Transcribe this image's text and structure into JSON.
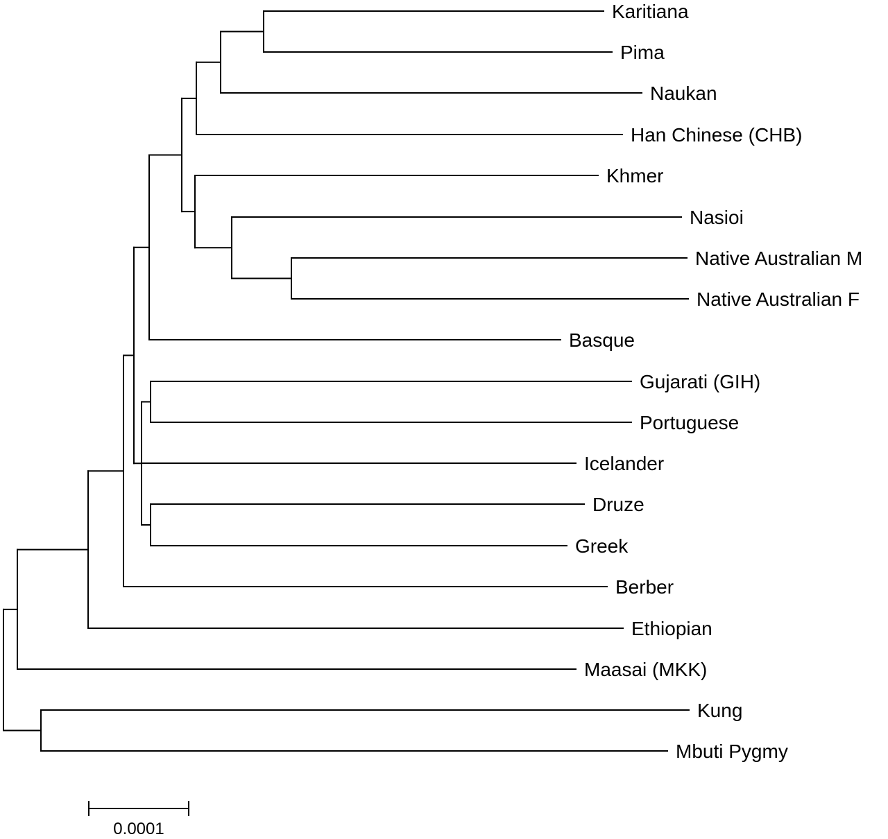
{
  "tree": {
    "leaves": [
      {
        "id": "karitiana",
        "label": "Karitiana"
      },
      {
        "id": "pima",
        "label": "Pima"
      },
      {
        "id": "naukan",
        "label": "Naukan"
      },
      {
        "id": "han",
        "label": "Han Chinese (CHB)"
      },
      {
        "id": "khmer",
        "label": "Khmer"
      },
      {
        "id": "nasioi",
        "label": "Nasioi"
      },
      {
        "id": "natausm",
        "label": "Native Australian M"
      },
      {
        "id": "natausf",
        "label": "Native Australian F"
      },
      {
        "id": "basque",
        "label": "Basque"
      },
      {
        "id": "gujarati",
        "label": "Gujarati (GIH)"
      },
      {
        "id": "portuguese",
        "label": "Portuguese"
      },
      {
        "id": "icelander",
        "label": "Icelander"
      },
      {
        "id": "druze",
        "label": "Druze"
      },
      {
        "id": "greek",
        "label": "Greek"
      },
      {
        "id": "berber",
        "label": "Berber"
      },
      {
        "id": "ethiopian",
        "label": "Ethiopian"
      },
      {
        "id": "maasai",
        "label": "Maasai (MKK)"
      },
      {
        "id": "kung",
        "label": "Kung"
      },
      {
        "id": "mbuti",
        "label": "Mbuti Pygmy"
      }
    ],
    "scale_bar": {
      "label": "0.0001",
      "value": 0.0001
    }
  }
}
